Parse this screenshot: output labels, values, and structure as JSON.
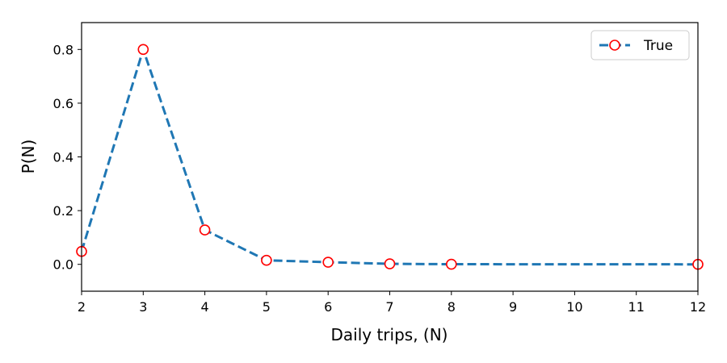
{
  "chart_data": {
    "type": "line",
    "xlabel": "Daily trips, (N)",
    "ylabel": "P(N)",
    "xlim": [
      2,
      12
    ],
    "ylim": [
      -0.1,
      0.9
    ],
    "xticks": [
      2,
      3,
      4,
      5,
      6,
      7,
      8,
      9,
      10,
      11,
      12
    ],
    "yticks": [
      0.0,
      0.2,
      0.4,
      0.6,
      0.8
    ],
    "ytick_labels": [
      "0.0",
      "0.2",
      "0.4",
      "0.6",
      "0.8"
    ],
    "grid": false,
    "legend": {
      "position": "top-right",
      "entries": [
        "True"
      ]
    },
    "series": [
      {
        "name": "True",
        "line_color": "#1f77b4",
        "line_style": "dashed",
        "marker": "circle",
        "marker_edge_color": "#ff0000",
        "marker_face_color": "#ffffff",
        "x": [
          2,
          3,
          4,
          5,
          6,
          7,
          8,
          12
        ],
        "y": [
          0.048,
          0.8,
          0.128,
          0.015,
          0.008,
          0.002,
          0.0005,
          0.0
        ]
      }
    ]
  }
}
